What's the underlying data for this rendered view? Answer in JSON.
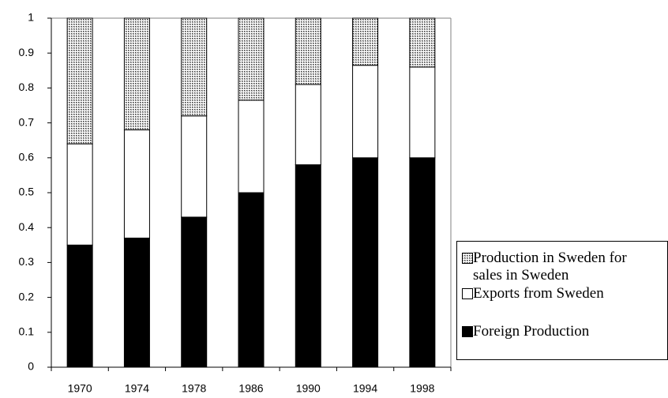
{
  "chart_data": {
    "type": "stacked_bar",
    "categories": [
      "1970",
      "1974",
      "1978",
      "1986",
      "1990",
      "1994",
      "1998"
    ],
    "series": [
      {
        "name": "Foreign Production",
        "color": "#000000",
        "values": [
          0.35,
          0.37,
          0.43,
          0.5,
          0.58,
          0.6,
          0.6
        ]
      },
      {
        "name": "Exports from Sweden",
        "color": "#ffffff",
        "values": [
          0.29,
          0.31,
          0.29,
          0.265,
          0.23,
          0.265,
          0.26
        ]
      },
      {
        "name": "Production in Sweden for sales in Sweden",
        "color": "#9a9a9a",
        "values": [
          0.36,
          0.32,
          0.28,
          0.235,
          0.19,
          0.135,
          0.14
        ]
      }
    ],
    "ylim": [
      0,
      1
    ],
    "yticks": [
      0,
      0.1,
      0.2,
      0.3,
      0.4,
      0.5,
      0.6,
      0.7,
      0.8,
      0.9,
      1
    ],
    "legend": "right"
  }
}
